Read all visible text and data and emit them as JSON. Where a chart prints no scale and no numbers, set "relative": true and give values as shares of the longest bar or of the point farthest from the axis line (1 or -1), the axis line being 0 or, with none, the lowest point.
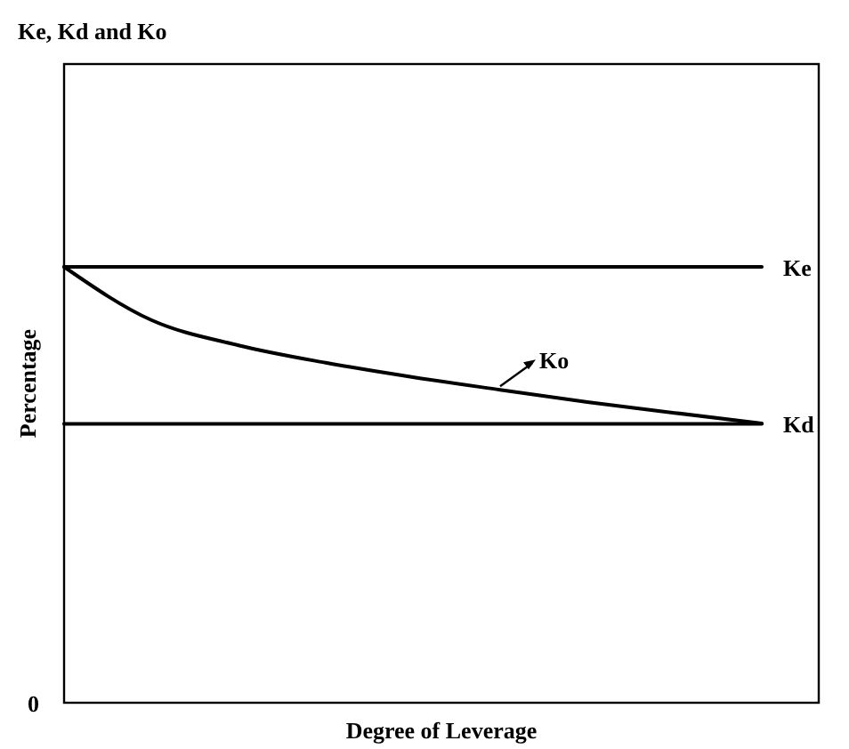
{
  "chart_data": {
    "type": "line",
    "title": "Ke, Kd and Ko",
    "xlabel": "Degree of Leverage",
    "ylabel": "Percentage",
    "relative": true,
    "marker": "none",
    "line_style": "solid",
    "categories": [
      null,
      null,
      null,
      null,
      null,
      null,
      null,
      null,
      null
    ],
    "series": [
      {
        "name": "Ke",
        "color": "#000000",
        "values": [
          1,
          1,
          1,
          1,
          1,
          1,
          1,
          1,
          1
        ]
      },
      {
        "name": "Kd",
        "color": "#000000",
        "values": [
          0.64,
          0.64,
          0.64,
          0.64,
          0.64,
          0.64,
          0.64,
          0.64,
          0.64
        ]
      },
      {
        "name": "Ko",
        "color": "#000000",
        "values": [
          1,
          0.878,
          0.82,
          0.78,
          0.747,
          0.718,
          0.69,
          0.665,
          0.641
        ]
      }
    ],
    "annotations": [
      "0"
    ]
  }
}
